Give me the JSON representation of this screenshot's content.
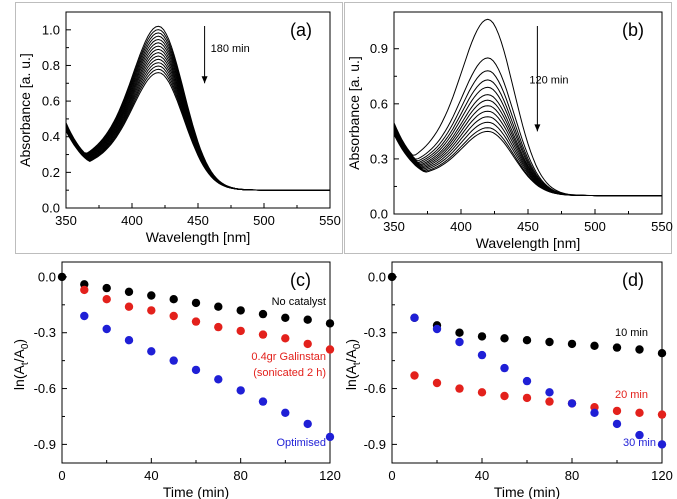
{
  "chart_data": [
    {
      "id": "a",
      "type": "line",
      "panel_label": "(a)",
      "xlabel": "Wavelength [nm]",
      "ylabel": "Absorbance [a. u.]",
      "xlim": [
        350,
        550
      ],
      "ylim": [
        0.0,
        1.1
      ],
      "xticks": [
        "350",
        "400",
        "450",
        "500",
        "550"
      ],
      "yticks": [
        "0.0",
        "0.2",
        "0.4",
        "0.6",
        "0.8",
        "1.0"
      ],
      "annotation": "180 min",
      "curves": {
        "count": 15,
        "peak_wavelength": 420,
        "first_peak": 1.02,
        "last_peak": 0.76,
        "base_at_350_first": 0.42,
        "base_at_350_last": 0.37,
        "tail_value": 0.1
      }
    },
    {
      "id": "b",
      "type": "line",
      "panel_label": "(b)",
      "xlabel": "Wavelength [nm]",
      "ylabel": "Absorbance [a. u.]",
      "xlim": [
        350,
        550
      ],
      "ylim": [
        0.0,
        1.1
      ],
      "xticks": [
        "350",
        "400",
        "450",
        "500",
        "550"
      ],
      "yticks": [
        "0.0",
        "0.3",
        "0.6",
        "0.9"
      ],
      "annotation": "120 min",
      "curves": {
        "count": 13,
        "peak_wavelength": 420,
        "peaks": [
          1.06,
          0.85,
          0.78,
          0.73,
          0.69,
          0.65,
          0.62,
          0.59,
          0.56,
          0.53,
          0.5,
          0.47,
          0.45
        ],
        "base_at_350_first": 0.44,
        "base_at_350_last": 0.37,
        "tail_value": 0.1
      }
    },
    {
      "id": "c",
      "type": "scatter",
      "panel_label": "(c)",
      "xlabel": "Time (min)",
      "ylabel_main": "ln(A",
      "ylabel_sub1": "t",
      "ylabel_mid": "/A",
      "ylabel_sub2": "0",
      "ylabel_end": ")",
      "xlim": [
        0,
        120
      ],
      "ylim": [
        -1.0,
        0.08
      ],
      "xticks": [
        "0",
        "40",
        "80",
        "120"
      ],
      "yticks": [
        "0.0",
        "-0.3",
        "-0.6",
        "-0.9"
      ],
      "series": [
        {
          "name": "No catalyst",
          "color": "#000000",
          "x": [
            0,
            10,
            20,
            30,
            40,
            50,
            60,
            70,
            80,
            90,
            100,
            110,
            120
          ],
          "y": [
            0.0,
            -0.04,
            -0.06,
            -0.08,
            -0.1,
            -0.12,
            -0.14,
            -0.16,
            -0.18,
            -0.2,
            -0.22,
            -0.23,
            -0.25
          ]
        },
        {
          "name": "0.4gr Galinstan",
          "name2": "(sonicated 2 h)",
          "color": "#e3211c",
          "x": [
            10,
            20,
            30,
            40,
            50,
            60,
            70,
            80,
            90,
            100,
            110,
            120
          ],
          "y": [
            -0.07,
            -0.12,
            -0.16,
            -0.18,
            -0.21,
            -0.24,
            -0.27,
            -0.29,
            -0.31,
            -0.33,
            -0.36,
            -0.39
          ]
        },
        {
          "name": "Optimised",
          "color": "#1f1fd6",
          "x": [
            10,
            20,
            30,
            40,
            50,
            60,
            70,
            80,
            90,
            100,
            110,
            120
          ],
          "y": [
            -0.21,
            -0.28,
            -0.34,
            -0.4,
            -0.45,
            -0.5,
            -0.55,
            -0.61,
            -0.67,
            -0.73,
            -0.79,
            -0.86
          ]
        }
      ]
    },
    {
      "id": "d",
      "type": "scatter",
      "panel_label": "(d)",
      "xlabel": "Time (min)",
      "ylabel_main": "ln(A",
      "ylabel_sub1": "t",
      "ylabel_mid": "/A",
      "ylabel_sub2": "0",
      "ylabel_end": ")",
      "xlim": [
        0,
        120
      ],
      "ylim": [
        -1.0,
        0.08
      ],
      "xticks": [
        "0",
        "40",
        "80",
        "120"
      ],
      "yticks": [
        "0.0",
        "-0.3",
        "-0.6",
        "-0.9"
      ],
      "series": [
        {
          "name": "10 min",
          "color": "#000000",
          "x": [
            0,
            10,
            20,
            30,
            40,
            50,
            60,
            70,
            80,
            90,
            100,
            110,
            120
          ],
          "y": [
            0.0,
            -0.22,
            -0.26,
            -0.3,
            -0.32,
            -0.33,
            -0.34,
            -0.35,
            -0.36,
            -0.37,
            -0.38,
            -0.39,
            -0.41
          ]
        },
        {
          "name": "20 min",
          "color": "#e3211c",
          "x": [
            10,
            20,
            30,
            40,
            50,
            60,
            70,
            80,
            90,
            100,
            110,
            120
          ],
          "y": [
            -0.53,
            -0.57,
            -0.6,
            -0.62,
            -0.64,
            -0.65,
            -0.67,
            -0.68,
            -0.7,
            -0.72,
            -0.73,
            -0.74
          ]
        },
        {
          "name": "30 min",
          "color": "#1f1fd6",
          "x": [
            10,
            20,
            30,
            40,
            50,
            60,
            70,
            80,
            90,
            100,
            110,
            120
          ],
          "y": [
            -0.22,
            -0.28,
            -0.35,
            -0.42,
            -0.49,
            -0.56,
            -0.62,
            -0.68,
            -0.73,
            -0.79,
            -0.85,
            -0.9
          ]
        }
      ]
    }
  ]
}
